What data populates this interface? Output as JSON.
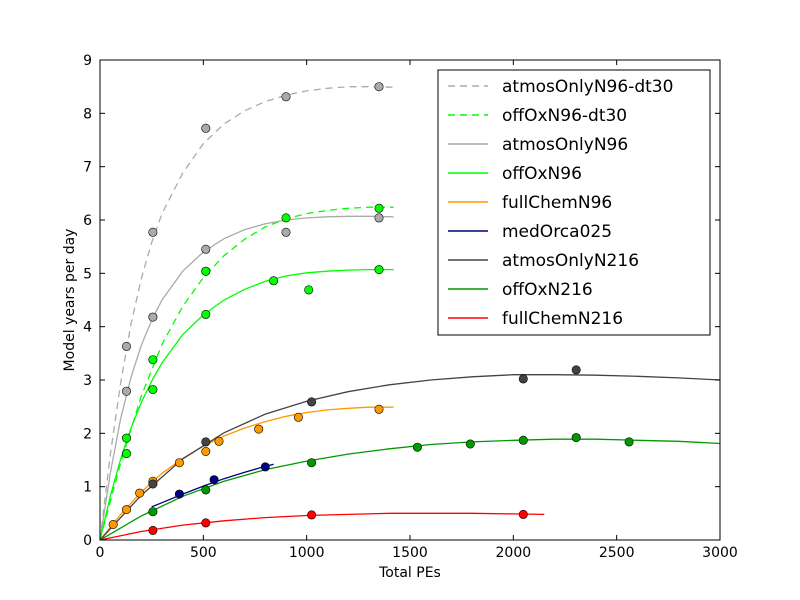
{
  "chart_data": {
    "type": "scatter",
    "xlabel": "Total PEs",
    "ylabel": "Model years per day",
    "xlim": [
      0,
      3000
    ],
    "ylim": [
      0,
      9
    ],
    "xticks": [
      0,
      500,
      1000,
      1500,
      2000,
      2500,
      3000
    ],
    "yticks": [
      0,
      1,
      2,
      3,
      4,
      5,
      6,
      7,
      8,
      9
    ],
    "grid": false,
    "legend_position": "top-right",
    "series": [
      {
        "name": "atmosOnlyN96-dt30",
        "color": "#aaaaaa",
        "line_style": "dashed",
        "marker_color": "#aaaaaa",
        "points": [
          [
            128,
            3.63
          ],
          [
            256,
            5.77
          ],
          [
            512,
            7.72
          ],
          [
            900,
            8.31
          ],
          [
            1350,
            8.5
          ]
        ],
        "fit": [
          [
            0,
            0
          ],
          [
            50,
            1.6
          ],
          [
            100,
            2.95
          ],
          [
            150,
            4.05
          ],
          [
            200,
            4.9
          ],
          [
            250,
            5.58
          ],
          [
            300,
            6.12
          ],
          [
            400,
            6.88
          ],
          [
            500,
            7.43
          ],
          [
            600,
            7.8
          ],
          [
            700,
            8.05
          ],
          [
            800,
            8.22
          ],
          [
            900,
            8.34
          ],
          [
            1000,
            8.42
          ],
          [
            1100,
            8.47
          ],
          [
            1200,
            8.5
          ],
          [
            1300,
            8.5
          ],
          [
            1420,
            8.49
          ]
        ]
      },
      {
        "name": "offOxN96-dt30",
        "color": "#00ff00",
        "line_style": "dashed",
        "marker_color": "#00ff00",
        "points": [
          [
            256,
            3.38
          ],
          [
            512,
            5.04
          ],
          [
            900,
            6.04
          ],
          [
            1350,
            6.22
          ]
        ],
        "fit": [
          [
            0,
            0
          ],
          [
            100,
            1.45
          ],
          [
            200,
            2.7
          ],
          [
            300,
            3.67
          ],
          [
            400,
            4.38
          ],
          [
            500,
            4.92
          ],
          [
            600,
            5.33
          ],
          [
            700,
            5.64
          ],
          [
            800,
            5.87
          ],
          [
            900,
            6.02
          ],
          [
            1000,
            6.12
          ],
          [
            1100,
            6.18
          ],
          [
            1200,
            6.22
          ],
          [
            1300,
            6.24
          ],
          [
            1420,
            6.24
          ]
        ]
      },
      {
        "name": "atmosOnlyN96",
        "color": "#aaaaaa",
        "line_style": "solid",
        "marker_color": "#aaaaaa",
        "points": [
          [
            128,
            2.79
          ],
          [
            256,
            4.18
          ],
          [
            512,
            5.45
          ],
          [
            900,
            5.77
          ],
          [
            1350,
            6.04
          ]
        ],
        "fit": [
          [
            0,
            0
          ],
          [
            50,
            1.25
          ],
          [
            100,
            2.28
          ],
          [
            150,
            3.05
          ],
          [
            200,
            3.65
          ],
          [
            250,
            4.12
          ],
          [
            300,
            4.5
          ],
          [
            400,
            5.04
          ],
          [
            500,
            5.4
          ],
          [
            600,
            5.65
          ],
          [
            700,
            5.82
          ],
          [
            800,
            5.93
          ],
          [
            900,
            6.0
          ],
          [
            1000,
            6.04
          ],
          [
            1100,
            6.06
          ],
          [
            1200,
            6.07
          ],
          [
            1300,
            6.07
          ],
          [
            1420,
            6.06
          ]
        ]
      },
      {
        "name": "offOxN96",
        "color": "#00ff00",
        "line_style": "solid",
        "marker_color": "#00ff00",
        "points": [
          [
            128,
            1.91
          ],
          [
            128,
            1.62
          ],
          [
            256,
            2.82
          ],
          [
            512,
            4.23
          ],
          [
            512,
            5.04
          ],
          [
            840,
            4.86
          ],
          [
            1010,
            4.69
          ],
          [
            1350,
            5.07
          ]
        ],
        "fit": [
          [
            0,
            0
          ],
          [
            50,
            0.82
          ],
          [
            100,
            1.52
          ],
          [
            150,
            2.1
          ],
          [
            200,
            2.58
          ],
          [
            250,
            2.98
          ],
          [
            300,
            3.32
          ],
          [
            400,
            3.85
          ],
          [
            500,
            4.22
          ],
          [
            600,
            4.5
          ],
          [
            700,
            4.7
          ],
          [
            800,
            4.85
          ],
          [
            900,
            4.95
          ],
          [
            1000,
            5.01
          ],
          [
            1100,
            5.04
          ],
          [
            1200,
            5.06
          ],
          [
            1300,
            5.07
          ],
          [
            1420,
            5.07
          ]
        ]
      },
      {
        "name": "fullChemN96",
        "color": "#ff9900",
        "line_style": "solid",
        "marker_color": "#ff9900",
        "points": [
          [
            64,
            0.29
          ],
          [
            128,
            0.57
          ],
          [
            192,
            0.88
          ],
          [
            256,
            1.1
          ],
          [
            384,
            1.45
          ],
          [
            512,
            1.66
          ],
          [
            576,
            1.85
          ],
          [
            768,
            2.08
          ],
          [
            960,
            2.3
          ],
          [
            1350,
            2.45
          ]
        ],
        "fit": [
          [
            0,
            0
          ],
          [
            100,
            0.48
          ],
          [
            200,
            0.9
          ],
          [
            300,
            1.25
          ],
          [
            400,
            1.53
          ],
          [
            500,
            1.76
          ],
          [
            600,
            1.95
          ],
          [
            700,
            2.1
          ],
          [
            800,
            2.22
          ],
          [
            900,
            2.32
          ],
          [
            1000,
            2.39
          ],
          [
            1100,
            2.44
          ],
          [
            1200,
            2.47
          ],
          [
            1300,
            2.49
          ],
          [
            1420,
            2.49
          ]
        ]
      },
      {
        "name": "medOrca025",
        "color": "#000080",
        "line_style": "solid",
        "marker_color": "#000080",
        "points": [
          [
            384,
            0.86
          ],
          [
            552,
            1.13
          ],
          [
            800,
            1.37
          ]
        ],
        "fit": [
          [
            250,
            0.62
          ],
          [
            300,
            0.7
          ],
          [
            400,
            0.86
          ],
          [
            500,
            1.01
          ],
          [
            600,
            1.15
          ],
          [
            700,
            1.27
          ],
          [
            780,
            1.36
          ],
          [
            840,
            1.42
          ]
        ]
      },
      {
        "name": "atmosOnlyN216",
        "color": "#444444",
        "line_style": "solid",
        "marker_color": "#444444",
        "points": [
          [
            256,
            1.05
          ],
          [
            512,
            1.84
          ],
          [
            1024,
            2.59
          ],
          [
            2048,
            3.02
          ],
          [
            2304,
            3.19
          ]
        ],
        "fit": [
          [
            0,
            0
          ],
          [
            200,
            0.84
          ],
          [
            400,
            1.52
          ],
          [
            600,
            2.01
          ],
          [
            800,
            2.36
          ],
          [
            1000,
            2.6
          ],
          [
            1200,
            2.78
          ],
          [
            1400,
            2.91
          ],
          [
            1600,
            3.0
          ],
          [
            1800,
            3.06
          ],
          [
            2000,
            3.1
          ],
          [
            2200,
            3.1
          ],
          [
            2400,
            3.09
          ],
          [
            2600,
            3.07
          ],
          [
            2800,
            3.04
          ],
          [
            3000,
            3.0
          ]
        ]
      },
      {
        "name": "offOxN216",
        "color": "#009900",
        "line_style": "solid",
        "marker_color": "#009900",
        "points": [
          [
            256,
            0.53
          ],
          [
            512,
            0.94
          ],
          [
            1024,
            1.45
          ],
          [
            1536,
            1.74
          ],
          [
            1792,
            1.8
          ],
          [
            2048,
            1.87
          ],
          [
            2304,
            1.92
          ],
          [
            2560,
            1.84
          ]
        ],
        "fit": [
          [
            0,
            0
          ],
          [
            200,
            0.45
          ],
          [
            400,
            0.82
          ],
          [
            600,
            1.1
          ],
          [
            800,
            1.32
          ],
          [
            1000,
            1.48
          ],
          [
            1200,
            1.61
          ],
          [
            1400,
            1.71
          ],
          [
            1600,
            1.79
          ],
          [
            1800,
            1.84
          ],
          [
            2000,
            1.87
          ],
          [
            2200,
            1.89
          ],
          [
            2400,
            1.89
          ],
          [
            2600,
            1.87
          ],
          [
            2800,
            1.85
          ],
          [
            3000,
            1.81
          ]
        ]
      },
      {
        "name": "fullChemN216",
        "color": "#ff0000",
        "line_style": "solid",
        "marker_color": "#ff0000",
        "points": [
          [
            256,
            0.18
          ],
          [
            512,
            0.32
          ],
          [
            1024,
            0.47
          ],
          [
            2048,
            0.48
          ]
        ],
        "fit": [
          [
            0,
            0
          ],
          [
            200,
            0.16
          ],
          [
            400,
            0.28
          ],
          [
            600,
            0.36
          ],
          [
            800,
            0.42
          ],
          [
            1000,
            0.46
          ],
          [
            1200,
            0.48
          ],
          [
            1400,
            0.5
          ],
          [
            1600,
            0.5
          ],
          [
            1800,
            0.5
          ],
          [
            2000,
            0.49
          ],
          [
            2150,
            0.48
          ]
        ]
      }
    ]
  }
}
